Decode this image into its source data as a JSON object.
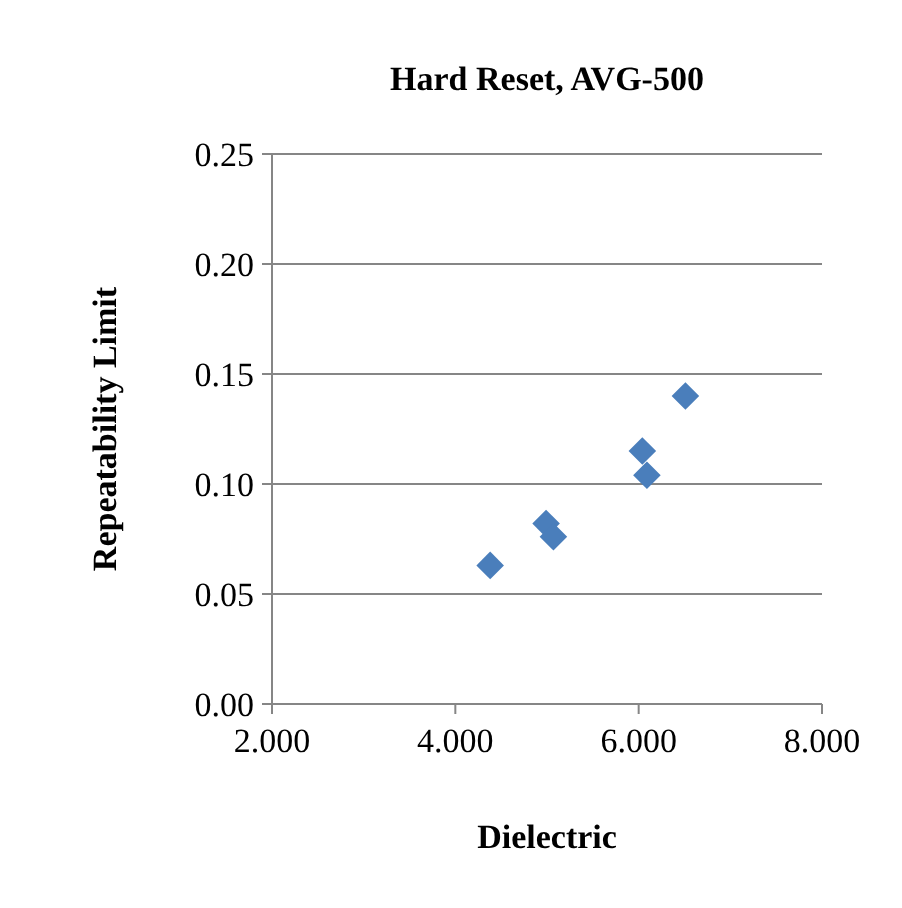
{
  "chart_data": {
    "type": "scatter",
    "title": "Hard Reset, AVG-500",
    "xlabel": "Dielectric",
    "ylabel": "Repeatability Limit",
    "x": [
      4.38,
      4.99,
      5.07,
      6.04,
      6.09,
      6.51
    ],
    "values": [
      0.063,
      0.082,
      0.076,
      0.115,
      0.104,
      0.14
    ],
    "color": "#4a7ebb",
    "marker": "diamond",
    "xlim": [
      2,
      8
    ],
    "xticks": [
      {
        "value": 2,
        "label": "2.000"
      },
      {
        "value": 4,
        "label": "4.000"
      },
      {
        "value": 6,
        "label": "6.000"
      },
      {
        "value": 8,
        "label": "8.000"
      }
    ],
    "ylim": [
      0,
      0.25
    ],
    "yticks": [
      {
        "value": 0,
        "label": "0.00"
      },
      {
        "value": 0.05,
        "label": "0.05"
      },
      {
        "value": 0.1,
        "label": "0.10"
      },
      {
        "value": 0.15,
        "label": "0.15"
      },
      {
        "value": 0.2,
        "label": "0.20"
      },
      {
        "value": 0.25,
        "label": "0.25"
      }
    ],
    "grid": "y"
  }
}
